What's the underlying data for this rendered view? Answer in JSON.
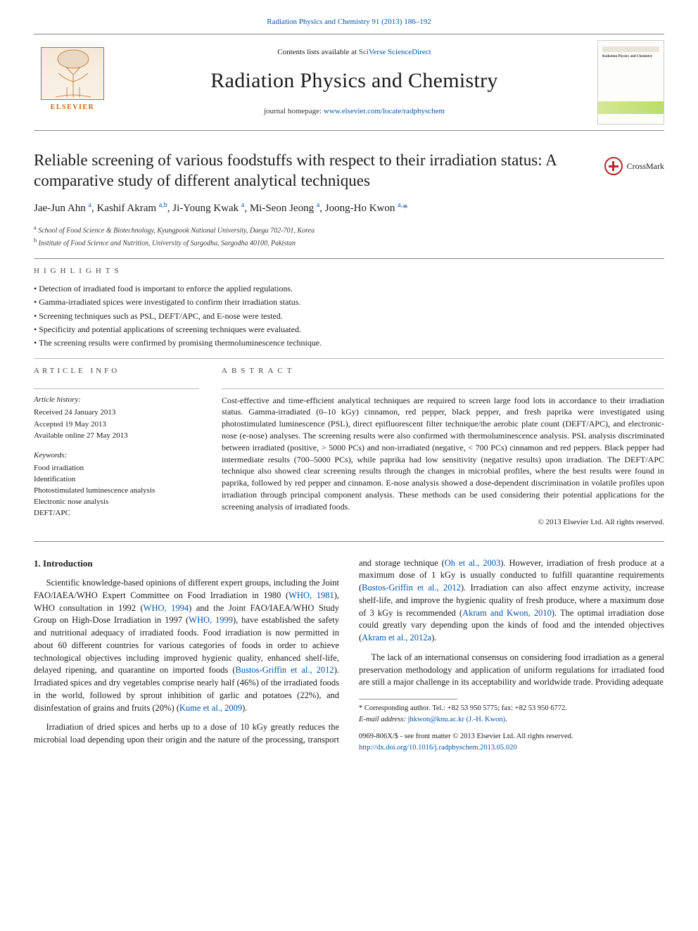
{
  "top_line": {
    "journal": "Radiation Physics and Chemistry",
    "issue": "91 (2013) 186–192"
  },
  "masthead": {
    "publisher_word": "ELSEVIER",
    "contents_prefix": "Contents lists available at ",
    "contents_link": "SciVerse ScienceDirect",
    "journal_name": "Radiation Physics and Chemistry",
    "homepage_prefix": "journal homepage: ",
    "homepage_link": "www.elsevier.com/locate/radphyschem",
    "thumb_title": "Radiation Physics and\nChemistry"
  },
  "crossmark_label": "CrossMark",
  "title": "Reliable screening of various foodstuffs with respect to their irradiation status: A comparative study of different analytical techniques",
  "authors_html": "Jae-Jun Ahn <sup>a</sup>, Kashif Akram <sup>a,b</sup>, Ji-Young Kwak <sup>a</sup>, Mi-Seon Jeong <sup>a</sup>, Joong-Ho Kwon <sup>a,</sup><span class=\"star\">*</span>",
  "affiliations": [
    {
      "sup": "a",
      "text": "School of Food Science & Biotechnology, Kyungpook National University, Daegu 702-701, Korea"
    },
    {
      "sup": "b",
      "text": "Institute of Food Science and Nutrition, University of Sargodha, Sargodha 40100, Pakistan"
    }
  ],
  "highlights": {
    "heading": "HIGHLIGHTS",
    "items": [
      "Detection of irradiated food is important to enforce the applied regulations.",
      "Gamma-irradiated spices were investigated to confirm their irradiation status.",
      "Screening techniques such as PSL, DEFT/APC, and E-nose were tested.",
      "Specificity and potential applications of screening techniques were evaluated.",
      "The screening results were confirmed by promising thermoluminescence technique."
    ]
  },
  "article_info": {
    "heading": "article info",
    "history_label": "Article history:",
    "history": [
      "Received 24 January 2013",
      "Accepted 19 May 2013",
      "Available online 27 May 2013"
    ],
    "keywords_label": "Keywords:",
    "keywords": [
      "Food irradiation",
      "Identification",
      "Photostimulated luminescence analysis",
      "Electronic nose analysis",
      "DEFT/APC"
    ]
  },
  "abstract": {
    "heading": "abstract",
    "text": "Cost-effective and time-efficient analytical techniques are required to screen large food lots in accordance to their irradiation status. Gamma-irradiated (0–10 kGy) cinnamon, red pepper, black pepper, and fresh paprika were investigated using photostimulated luminescence (PSL), direct epifluorescent filter technique/the aerobic plate count (DEFT/APC), and electronic-nose (e-nose) analyses. The screening results were also confirmed with thermoluminescence analysis. PSL analysis discriminated between irradiated (positive, > 5000 PCs) and non-irradiated (negative, < 700 PCs) cinnamon and red peppers. Black pepper had intermediate results (700–5000 PCs), while paprika had low sensitivity (negative results) upon irradiation. The DEFT/APC technique also showed clear screening results through the changes in microbial profiles, where the best results were found in paprika, followed by red pepper and cinnamon. E-nose analysis showed a dose-dependent discrimination in volatile profiles upon irradiation through principal component analysis. These methods can be used considering their potential applications for the screening analysis of irradiated foods.",
    "copyright": "© 2013 Elsevier Ltd. All rights reserved."
  },
  "intro": {
    "heading": "1.  Introduction",
    "paragraphs": [
      "Scientific knowledge-based opinions of different expert groups, including the Joint FAO/IAEA/WHO Expert Committee on Food Irradiation in 1980 (<span class=\"ref\">WHO, 1981</span>), WHO consultation in 1992 (<span class=\"ref\">WHO, 1994</span>) and the Joint FAO/IAEA/WHO Study Group on High-Dose Irradiation in 1997 (<span class=\"ref\">WHO, 1999</span>), have established the safety and nutritional adequacy of irradiated foods. Food irradiation is now permitted in about 60 different countries for various categories of foods in order to achieve technological objectives including improved hygienic quality, enhanced shelf-life, delayed ripening, and quarantine on imported foods (<span class=\"ref\">Bustos-Griffin et al., 2012</span>). Irradiated spices and dry vegetables comprise nearly half (46%) of the irradiated foods in the world, followed by sprout inhibition of garlic and potatoes (22%), and disinfestation of grains and fruits (20%) (<span class=\"ref\">Kume et al., 2009</span>).",
      "Irradiation of dried spices and herbs up to a dose of 10 kGy greatly reduces the microbial load depending upon their origin and the nature of the processing, transport and storage technique (<span class=\"ref\">Oh et al., 2003</span>). However, irradiation of fresh produce at a maximum dose of 1 kGy is usually conducted to fulfill quarantine requirements (<span class=\"ref\">Bustos-Griffin et al., 2012</span>). Irradiation can also affect enzyme activity, increase shelf-life, and improve the hygienic quality of fresh produce, where a maximum dose of 3 kGy is recommended (<span class=\"ref\">Akram and Kwon, 2010</span>). The optimal irradiation dose could greatly vary depending upon the kinds of food and the intended objectives (<span class=\"ref\">Akram et al., 2012a</span>).",
      "The lack of an international consensus on considering food irradiation as a general preservation methodology and application of uniform regulations for irradiated food are still a major challenge in its acceptability and worldwide trade. Providing adequate"
    ]
  },
  "footnotes": {
    "corresponding": "* Corresponding author. Tel.: +82 53 950 5775; fax: +82 53 950 6772.",
    "email_label": "E-mail address:",
    "email": "jhkwon@knu.ac.kr",
    "email_name": "(J.-H. Kwon)",
    "issn_line": "0969-806X/$ - see front matter © 2013 Elsevier Ltd. All rights reserved.",
    "doi": "http://dx.doi.org/10.1016/j.radphyschem.2013.05.020"
  },
  "colors": {
    "link": "#0055aa",
    "text": "#1a1a1a",
    "rule": "#888888",
    "elsevier": "#c06a1a",
    "crossmark": "#b02a2a"
  }
}
